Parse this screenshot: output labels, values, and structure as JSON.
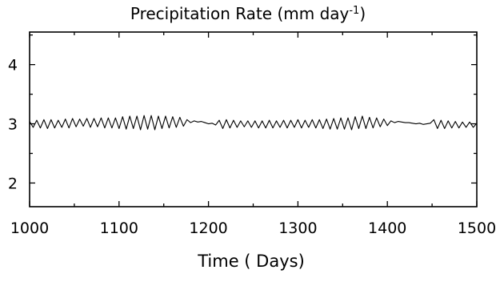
{
  "chart_data": {
    "type": "line",
    "title": "Precipitation Rate (mm day",
    "title_superscript": "-1",
    "title_close": ")",
    "xlabel": "Time ( Days)",
    "ylabel": "",
    "xlim": [
      1000,
      1500
    ],
    "ylim": [
      1.6,
      4.55
    ],
    "x_ticks": [
      1000,
      1100,
      1200,
      1300,
      1400,
      1500
    ],
    "x_tick_labels": [
      "1000",
      "1100",
      "1200",
      "1300",
      "1400",
      "1500"
    ],
    "y_ticks": [
      2,
      3,
      4
    ],
    "y_tick_labels": [
      "2",
      "3",
      "4"
    ],
    "grid": false,
    "legend": "none",
    "series": [
      {
        "line_color": "#000000",
        "x": [
          1000,
          1004,
          1008,
          1012,
          1016,
          1020,
          1024,
          1028,
          1032,
          1036,
          1040,
          1044,
          1048,
          1052,
          1056,
          1060,
          1064,
          1068,
          1072,
          1076,
          1080,
          1084,
          1088,
          1092,
          1096,
          1100,
          1104,
          1108,
          1112,
          1116,
          1120,
          1124,
          1128,
          1132,
          1136,
          1140,
          1144,
          1148,
          1152,
          1156,
          1160,
          1164,
          1168,
          1172,
          1176,
          1180,
          1184,
          1188,
          1192,
          1196,
          1200,
          1204,
          1208,
          1212,
          1216,
          1220,
          1224,
          1228,
          1232,
          1236,
          1240,
          1244,
          1248,
          1252,
          1256,
          1260,
          1264,
          1268,
          1272,
          1276,
          1280,
          1284,
          1288,
          1292,
          1296,
          1300,
          1304,
          1308,
          1312,
          1316,
          1320,
          1324,
          1328,
          1332,
          1336,
          1340,
          1344,
          1348,
          1352,
          1356,
          1360,
          1364,
          1368,
          1372,
          1376,
          1380,
          1384,
          1388,
          1392,
          1396,
          1400,
          1404,
          1408,
          1412,
          1416,
          1420,
          1424,
          1428,
          1432,
          1436,
          1440,
          1444,
          1448,
          1452,
          1456,
          1460,
          1464,
          1468,
          1472,
          1476,
          1480,
          1484,
          1488,
          1492,
          1496,
          1500
        ],
        "y": [
          3.04,
          2.94,
          3.06,
          2.93,
          3.07,
          2.92,
          3.07,
          2.93,
          3.06,
          2.94,
          3.08,
          2.93,
          3.09,
          2.95,
          3.08,
          2.96,
          3.09,
          2.94,
          3.09,
          2.95,
          3.1,
          2.93,
          3.1,
          2.93,
          3.1,
          2.92,
          3.12,
          2.91,
          3.13,
          2.92,
          3.13,
          2.9,
          3.14,
          2.91,
          3.14,
          2.9,
          3.13,
          2.92,
          3.13,
          2.93,
          3.12,
          2.94,
          3.11,
          2.96,
          3.07,
          3.02,
          3.05,
          3.03,
          3.04,
          3.02,
          3.0,
          3.01,
          2.98,
          3.06,
          2.92,
          3.07,
          2.93,
          3.06,
          2.94,
          3.05,
          2.95,
          3.05,
          2.94,
          3.05,
          2.93,
          3.05,
          2.93,
          3.06,
          2.93,
          3.05,
          2.94,
          3.06,
          2.93,
          3.06,
          2.94,
          3.07,
          2.93,
          3.06,
          2.94,
          3.07,
          2.93,
          3.07,
          2.92,
          3.08,
          2.91,
          3.09,
          2.91,
          3.1,
          2.91,
          3.1,
          2.9,
          3.12,
          2.92,
          3.13,
          2.92,
          3.11,
          2.93,
          3.1,
          2.95,
          3.08,
          2.97,
          3.05,
          3.02,
          3.04,
          3.03,
          3.02,
          3.02,
          3.01,
          3.0,
          3.01,
          2.99,
          3.0,
          3.01,
          3.07,
          2.92,
          3.06,
          2.92,
          3.05,
          2.93,
          3.04,
          2.93,
          3.03,
          2.94,
          3.03,
          2.94,
          3.01
        ]
      }
    ]
  }
}
